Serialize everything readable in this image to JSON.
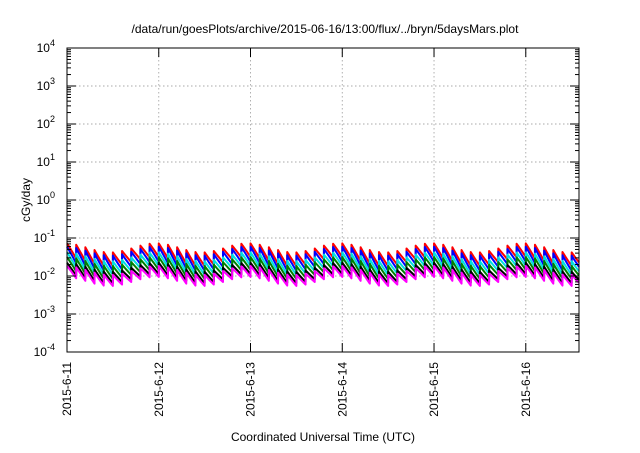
{
  "chart_data": {
    "type": "line",
    "title": "/data/run/goesPlots/archive/2015-06-16/13:00/flux/../bryn/5daysMars.plot",
    "xlabel": "Coordinated Universal Time (UTC)",
    "ylabel": "cGy/day",
    "yscale": "log",
    "ylim": [
      0.0001,
      10000
    ],
    "xlim": [
      0,
      5.58
    ],
    "grid": true,
    "legend": "none",
    "x_axis_type": "date",
    "x_unit": "days",
    "xticks": [
      {
        "value": 0,
        "label": "2015-6-11"
      },
      {
        "value": 1,
        "label": "2015-6-12"
      },
      {
        "value": 2,
        "label": "2015-6-13"
      },
      {
        "value": 3,
        "label": "2015-6-14"
      },
      {
        "value": 4,
        "label": "2015-6-15"
      },
      {
        "value": 5,
        "label": "2015-6-16"
      }
    ],
    "yticks": [
      {
        "value": 0.0001,
        "base": "10",
        "exp": "-4"
      },
      {
        "value": 0.001,
        "base": "10",
        "exp": "-3"
      },
      {
        "value": 0.01,
        "base": "10",
        "exp": "-2"
      },
      {
        "value": 0.1,
        "base": "10",
        "exp": "-1"
      },
      {
        "value": 1,
        "base": "10",
        "exp": "0"
      },
      {
        "value": 10,
        "base": "10",
        "exp": "1"
      },
      {
        "value": 100,
        "base": "10",
        "exp": "2"
      },
      {
        "value": 1000,
        "base": "10",
        "exp": "3"
      },
      {
        "value": 10000,
        "base": "10",
        "exp": "4"
      }
    ],
    "pattern": {
      "sawtooth_period_days": 0.1,
      "modulation_period_days": 1.0,
      "modulation_peak_at": [
        0.97,
        1.97,
        2.97,
        3.97,
        4.97
      ]
    },
    "series": [
      {
        "color": "#ff0000",
        "peak": 0.055,
        "trough": 0.024
      },
      {
        "color": "#0000ff",
        "peak": 0.045,
        "trough": 0.018
      },
      {
        "color": "#00e0e0",
        "peak": 0.032,
        "trough": 0.014
      },
      {
        "color": "#008000",
        "peak": 0.024,
        "trough": 0.011
      },
      {
        "color": "#000000",
        "peak": 0.017,
        "trough": 0.0085
      },
      {
        "color": "#ff00ff",
        "peak": 0.014,
        "trough": 0.0072
      }
    ]
  }
}
